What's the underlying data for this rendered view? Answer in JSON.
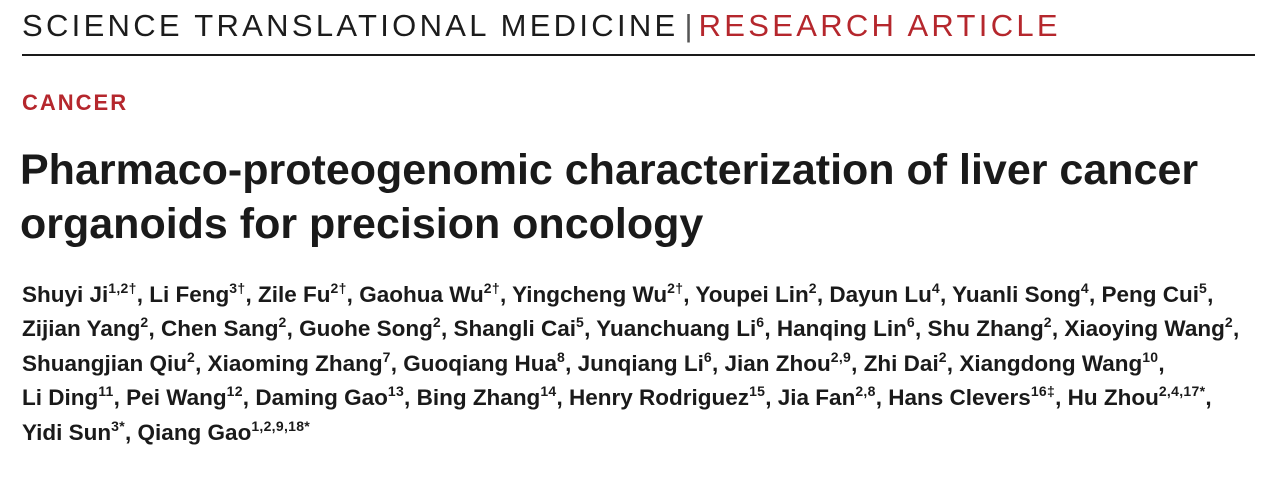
{
  "header": {
    "journal": "SCIENCE TRANSLATIONAL MEDICINE",
    "separator": "|",
    "article_type": "RESEARCH ARTICLE"
  },
  "section": "CANCER",
  "title": "Pharmaco-proteogenomic characterization of liver cancer organoids for precision oncology",
  "authors": [
    {
      "name": "Shuyi Ji",
      "aff": "1,2†"
    },
    {
      "name": "Li Feng",
      "aff": "3†"
    },
    {
      "name": "Zile Fu",
      "aff": "2†"
    },
    {
      "name": "Gaohua Wu",
      "aff": "2†"
    },
    {
      "name": "Yingcheng Wu",
      "aff": "2†"
    },
    {
      "name": "Youpei Lin",
      "aff": "2"
    },
    {
      "name": "Dayun Lu",
      "aff": "4"
    },
    {
      "name": "Yuanli Song",
      "aff": "4"
    },
    {
      "name": "Peng Cui",
      "aff": "5"
    },
    {
      "name": "Zijian Yang",
      "aff": "2"
    },
    {
      "name": "Chen Sang",
      "aff": "2"
    },
    {
      "name": "Guohe Song",
      "aff": "2"
    },
    {
      "name": "Shangli Cai",
      "aff": "5"
    },
    {
      "name": "Yuanchuang Li",
      "aff": "6"
    },
    {
      "name": "Hanqing Lin",
      "aff": "6"
    },
    {
      "name": "Shu Zhang",
      "aff": "2"
    },
    {
      "name": "Xiaoying Wang",
      "aff": "2"
    },
    {
      "name": "Shuangjian Qiu",
      "aff": "2"
    },
    {
      "name": "Xiaoming Zhang",
      "aff": "7"
    },
    {
      "name": "Guoqiang Hua",
      "aff": "8"
    },
    {
      "name": "Junqiang Li",
      "aff": "6"
    },
    {
      "name": "Jian Zhou",
      "aff": "2,9"
    },
    {
      "name": "Zhi Dai",
      "aff": "2"
    },
    {
      "name": "Xiangdong Wang",
      "aff": "10"
    },
    {
      "name": "Li Ding",
      "aff": "11"
    },
    {
      "name": "Pei Wang",
      "aff": "12"
    },
    {
      "name": "Daming Gao",
      "aff": "13"
    },
    {
      "name": "Bing Zhang",
      "aff": "14"
    },
    {
      "name": "Henry Rodriguez",
      "aff": "15"
    },
    {
      "name": "Jia Fan",
      "aff": "2,8"
    },
    {
      "name": "Hans Clevers",
      "aff": "16‡"
    },
    {
      "name": "Hu Zhou",
      "aff": "2,4,17*"
    },
    {
      "name": "Yidi Sun",
      "aff": "3*"
    },
    {
      "name": "Qiang Gao",
      "aff": "1,2,9,18*"
    }
  ]
}
